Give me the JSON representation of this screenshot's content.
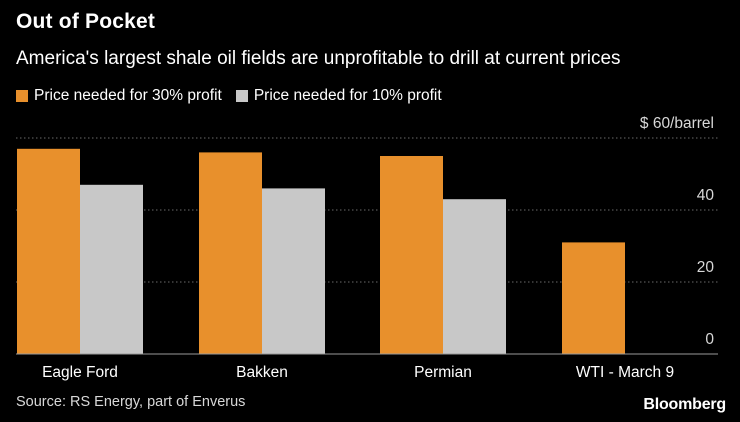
{
  "header": {
    "title": "Out of Pocket",
    "subtitle": "America's largest shale oil fields are unprofitable to drill at current prices"
  },
  "legend": {
    "items": [
      {
        "label": "Price needed for 30% profit",
        "color": "#e8902c"
      },
      {
        "label": "Price needed for 10% profit",
        "color": "#c8c8c8"
      }
    ]
  },
  "footer": {
    "source": "Source: RS Energy, part of Enverus",
    "brand": "Bloomberg"
  },
  "chart_data": {
    "type": "bar",
    "categories": [
      "Eagle Ford",
      "Bakken",
      "Permian",
      "WTI - March 9"
    ],
    "series": [
      {
        "name": "Price needed for 30% profit",
        "color": "#e8902c",
        "values": [
          57,
          56,
          55,
          31
        ]
      },
      {
        "name": "Price needed for 10% profit",
        "color": "#c8c8c8",
        "values": [
          47,
          46,
          43,
          null
        ]
      }
    ],
    "yticks": [
      0,
      20,
      40,
      60
    ],
    "ytick_labels": [
      "0",
      "20",
      "40",
      "$ 60/barrel"
    ],
    "ylim": [
      0,
      60
    ],
    "ylabel": "$ 60/barrel",
    "grid": true,
    "axis_position": "right"
  }
}
